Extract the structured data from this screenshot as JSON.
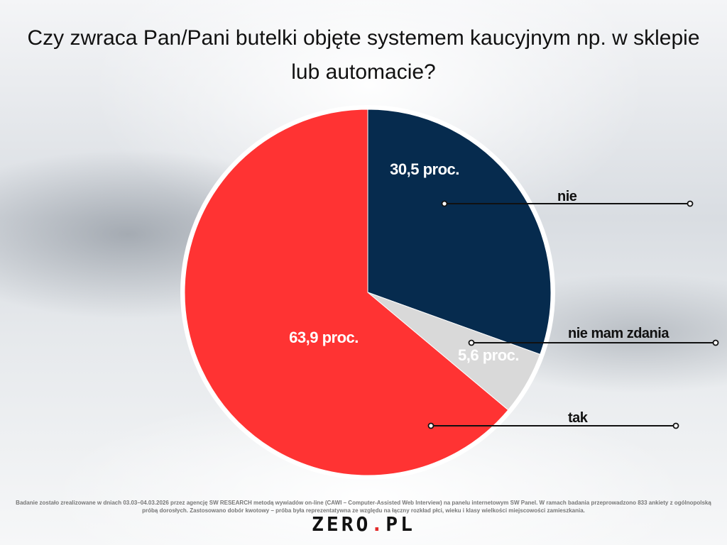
{
  "chart_data": {
    "type": "pie",
    "title": "Czy zwraca Pan/Pani butelki objęte systemem kaucyjnym np. w sklepie lub automacie?",
    "slices": [
      {
        "label": "nie",
        "value": 30.5,
        "value_label": "30,5 proc.",
        "color": "#062b4e"
      },
      {
        "label": "nie mam zdania",
        "value": 5.6,
        "value_label": "5,6 proc.",
        "color": "#d9d9d9"
      },
      {
        "label": "tak",
        "value": 63.9,
        "value_label": "63,9 proc.",
        "color": "#ff3333"
      }
    ]
  },
  "footnote": "Badanie zostało zrealizowane w dniach 03.03–04.03.2026 przez agencję SW RESEARCH metodą wywiadów on-line (CAWI – Computer-Assisted Web Interview) na panelu internetowym SW Panel. W ramach badania przeprowadzono 833 ankiety z ogólnopolską próbą dorosłych. Zastosowano dobór kwotowy – próba była reprezentatywna ze względu na łączny rozkład płci, wieku i klasy wielkości miejscowości zamieszkania.",
  "logo": {
    "text": "ZERO.PL",
    "part1": "ZERO",
    "dot": ".",
    "part2": "PL",
    "accent": "#e32b2b"
  }
}
